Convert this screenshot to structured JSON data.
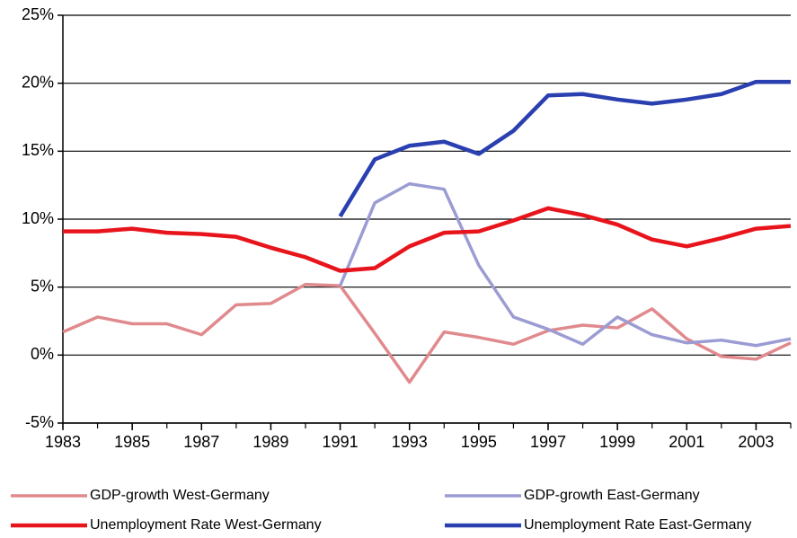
{
  "chart_data": {
    "type": "line",
    "x": [
      1983,
      1984,
      1985,
      1986,
      1987,
      1988,
      1989,
      1990,
      1991,
      1992,
      1993,
      1994,
      1995,
      1996,
      1997,
      1998,
      1999,
      2000,
      2001,
      2002,
      2003,
      2004
    ],
    "series": [
      {
        "name": "GDP-growth West-Germany",
        "color": "#e08a8e",
        "values": [
          1.7,
          2.8,
          2.3,
          2.3,
          1.5,
          3.7,
          3.8,
          5.2,
          5.1,
          1.6,
          -2.0,
          1.7,
          1.3,
          0.8,
          1.8,
          2.2,
          2.0,
          3.4,
          1.2,
          -0.1,
          -0.3,
          0.9
        ]
      },
      {
        "name": "GDP-growth East-Germany",
        "color": "#9c9cd4",
        "values": [
          null,
          null,
          null,
          null,
          null,
          null,
          null,
          null,
          5.1,
          11.2,
          12.6,
          12.2,
          6.6,
          2.8,
          1.9,
          0.8,
          2.8,
          1.5,
          0.9,
          1.1,
          0.7,
          1.2
        ]
      },
      {
        "name": "Unemployment Rate West-Germany",
        "color": "#e8141c",
        "values": [
          9.1,
          9.1,
          9.3,
          9.0,
          8.9,
          8.7,
          7.9,
          7.2,
          6.2,
          6.4,
          8.0,
          9.0,
          9.1,
          9.9,
          10.8,
          10.3,
          9.6,
          8.5,
          8.0,
          8.6,
          9.3,
          9.5
        ]
      },
      {
        "name": "Unemployment Rate East-Germany",
        "color": "#2a3fb0",
        "values": [
          null,
          null,
          null,
          null,
          null,
          null,
          null,
          null,
          10.2,
          14.4,
          15.4,
          15.7,
          14.8,
          16.5,
          19.1,
          19.2,
          18.8,
          18.5,
          18.8,
          19.2,
          20.1,
          20.1
        ]
      }
    ],
    "xlim": [
      1983,
      2004
    ],
    "xticks": [
      1983,
      1985,
      1987,
      1989,
      1991,
      1993,
      1995,
      1997,
      1999,
      2001,
      2003
    ],
    "ylim": [
      -5,
      25
    ],
    "yticks": [
      {
        "value": -5,
        "label": "-5%"
      },
      {
        "value": 0,
        "label": "0%"
      },
      {
        "value": 5,
        "label": "5%"
      },
      {
        "value": 10,
        "label": "10%"
      },
      {
        "value": 15,
        "label": "15%"
      },
      {
        "value": 20,
        "label": "20%"
      },
      {
        "value": 25,
        "label": "25%"
      }
    ],
    "grid": true
  }
}
